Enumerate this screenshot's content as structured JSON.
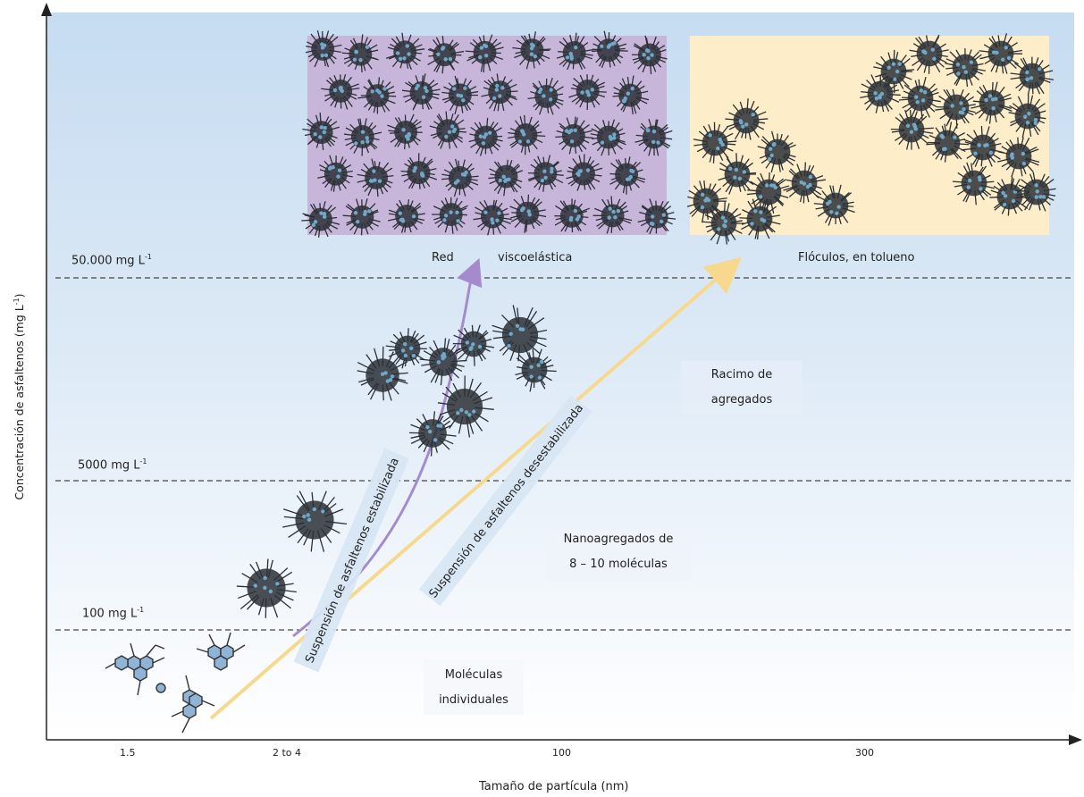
{
  "axes": {
    "ylabel": "Concentración de asfaltenos (mg L",
    "ylabel_sup": "-1",
    "ylabel_close": ")",
    "xlabel": "Tamaño de partícula (nm)",
    "xticks": [
      "1.5",
      "2 to 4",
      "100",
      "300"
    ]
  },
  "levels": [
    {
      "label": "50.000 mg L",
      "sup": "-1"
    },
    {
      "label": "5000 mg L",
      "sup": "-1"
    },
    {
      "label": "100 mg L",
      "sup": "-1"
    }
  ],
  "regions": {
    "red_a": "Red",
    "red_b": "viscoelástica",
    "floculos": "Flóculos, en tolueno",
    "racimo_1": "Racimo de",
    "racimo_2": "agregados",
    "nano_1": "Nanoagregados de",
    "nano_2": "8 – 10 moléculas",
    "mol_1": "Moléculas",
    "mol_2": "individuales"
  },
  "arrows": {
    "estabilizada": "Suspensión de asfaltenos estabilizada",
    "desestabilizada": "Suspensión de asfaltenos desestabilizada"
  },
  "colors": {
    "purple_panel": "#c8b6da",
    "yellow_panel": "#fdedc8",
    "purple_arrow": "#a48ccc",
    "yellow_arrow": "#f7d98e",
    "bg_top": "#c6dcf1"
  }
}
